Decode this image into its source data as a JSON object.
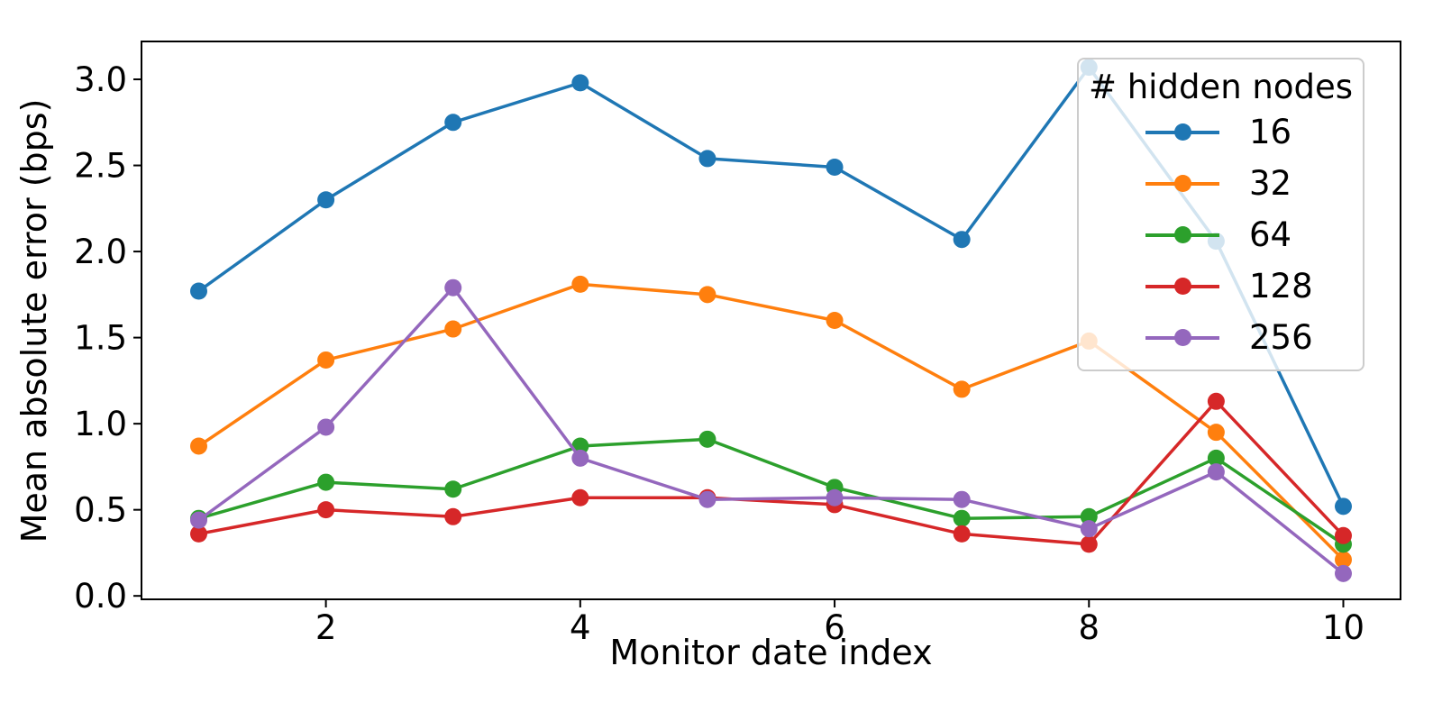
{
  "chart_data": {
    "type": "line",
    "title": "",
    "xlabel": "Monitor date index",
    "ylabel": "Mean absolute error (bps)",
    "x": [
      1,
      2,
      3,
      4,
      5,
      6,
      7,
      8,
      9,
      10
    ],
    "xlim": [
      0.55,
      10.45
    ],
    "ylim": [
      -0.02,
      3.22
    ],
    "grid": false,
    "xticks": [
      2,
      4,
      6,
      8,
      10
    ],
    "xtick_labels": [
      "2",
      "4",
      "6",
      "8",
      "10"
    ],
    "yticks": [
      0.0,
      0.5,
      1.0,
      1.5,
      2.0,
      2.5,
      3.0
    ],
    "ytick_labels": [
      "0.0",
      "0.5",
      "1.0",
      "1.5",
      "2.0",
      "2.5",
      "3.0"
    ],
    "legend": {
      "title": "# hidden nodes",
      "position": "upper right"
    },
    "series": [
      {
        "name": "16",
        "color": "#1f77b4",
        "values": [
          1.77,
          2.3,
          2.75,
          2.98,
          2.54,
          2.49,
          2.07,
          3.07,
          2.06,
          0.52
        ]
      },
      {
        "name": "32",
        "color": "#ff7f0e",
        "values": [
          0.87,
          1.37,
          1.55,
          1.81,
          1.75,
          1.6,
          1.2,
          1.48,
          0.95,
          0.21
        ]
      },
      {
        "name": "64",
        "color": "#2ca02c",
        "values": [
          0.45,
          0.66,
          0.62,
          0.87,
          0.91,
          0.63,
          0.45,
          0.46,
          0.8,
          0.3
        ]
      },
      {
        "name": "128",
        "color": "#d62728",
        "values": [
          0.36,
          0.5,
          0.46,
          0.57,
          0.57,
          0.53,
          0.36,
          0.3,
          1.13,
          0.35
        ]
      },
      {
        "name": "256",
        "color": "#9467bd",
        "values": [
          0.44,
          0.98,
          1.79,
          0.8,
          0.56,
          0.57,
          0.56,
          0.39,
          0.72,
          0.13
        ]
      }
    ],
    "style": {
      "spine_color": "#000000",
      "tick_color": "#000000",
      "text_color": "#000000",
      "line_width": 3.5,
      "marker_radius": 9.5
    }
  }
}
